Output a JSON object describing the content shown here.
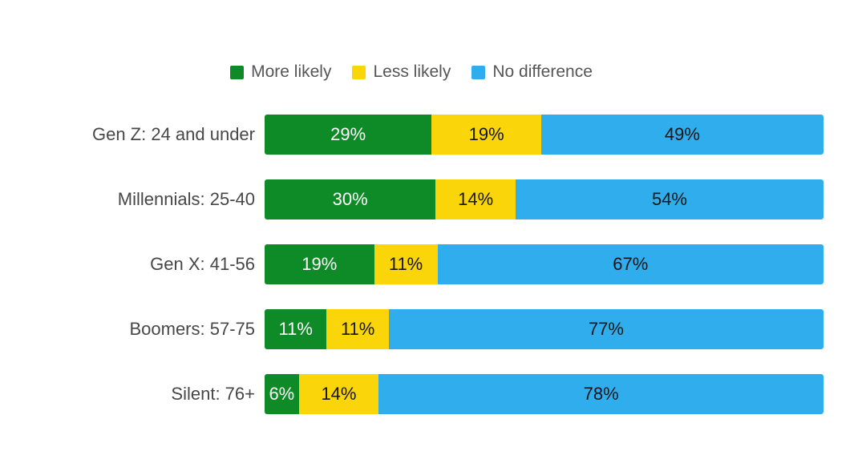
{
  "legend": {
    "position": "top",
    "items": [
      {
        "label": "More likely",
        "color": "#0E8A26"
      },
      {
        "label": "Less likely",
        "color": "#F9D50A"
      },
      {
        "label": "No difference",
        "color": "#30ADEC"
      }
    ]
  },
  "chart_data": {
    "type": "bar",
    "orientation": "horizontal",
    "stacked": true,
    "normalized": true,
    "title": "",
    "xlabel": "",
    "ylabel": "",
    "axis_ticks": "none",
    "grid": false,
    "legend_position": "top",
    "background": "#FFFFFF",
    "value_suffix": "%",
    "categories": [
      "Gen Z: 24 and under",
      "Millennials: 25-40",
      "Gen X: 41-56",
      "Boomers: 57-75",
      "Silent: 76+"
    ],
    "series": [
      {
        "name": "More likely",
        "color": "#0E8A26",
        "text_color": "#FFFFFF",
        "values": [
          29,
          30,
          19,
          11,
          6
        ],
        "labels": [
          "29%",
          "30%",
          "19%",
          "11%",
          "6%"
        ]
      },
      {
        "name": "Less likely",
        "color": "#F9D50A",
        "text_color": "#151515",
        "values": [
          19,
          14,
          11,
          11,
          14
        ],
        "labels": [
          "19%",
          "14%",
          "11%",
          "11%",
          "14%"
        ]
      },
      {
        "name": "No difference",
        "color": "#30ADEC",
        "text_color": "#151515",
        "values": [
          49,
          54,
          67,
          77,
          78
        ],
        "labels": [
          "49%",
          "54%",
          "67%",
          "77%",
          "78%"
        ]
      }
    ]
  },
  "styles": {
    "label_color": "#474747",
    "legend_text_color": "#565656"
  }
}
